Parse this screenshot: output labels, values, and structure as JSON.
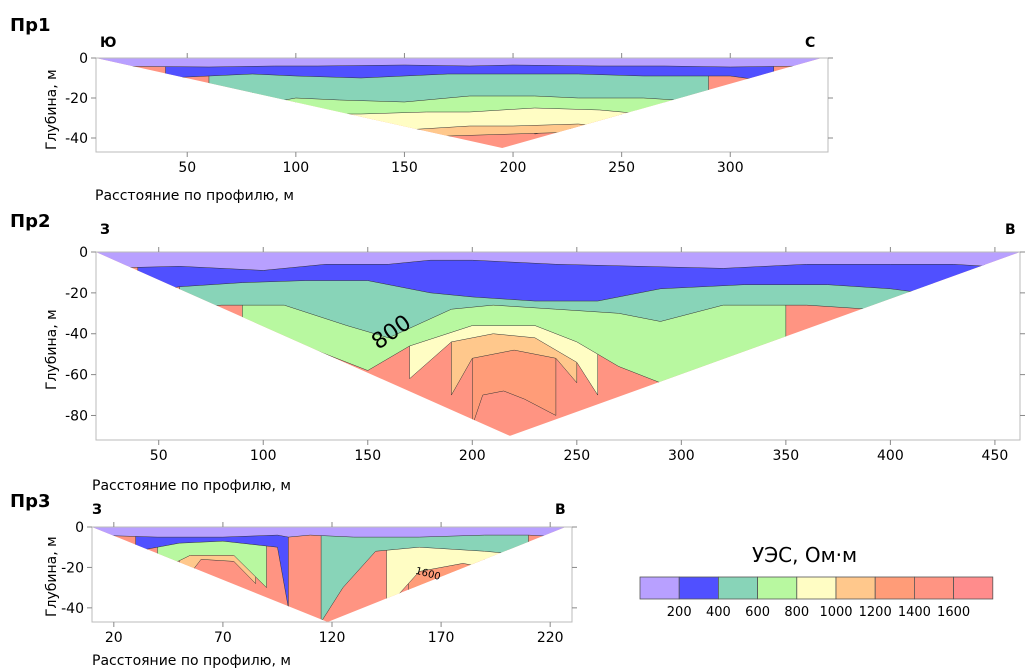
{
  "chart_data": [
    {
      "type": "heatmap",
      "panel_label": "Пр1",
      "dir_left": "Ю",
      "dir_right": "С",
      "xlabel": "Расстояние по профилю, м",
      "ylabel": "Глубина, м",
      "xlim": [
        8,
        345
      ],
      "ylim": [
        -47,
        0
      ],
      "xticks": [
        50,
        100,
        150,
        200,
        250,
        300
      ],
      "yticks": [
        0,
        -20,
        -40
      ],
      "section": {
        "x_start": 8,
        "x_end": 342,
        "x_apex": 195,
        "depth_max": 45
      },
      "boundaries": [
        {
          "x": [
            8,
            60,
            90,
            110,
            150,
            180,
            200,
            240,
            270,
            300,
            335,
            342
          ],
          "depth": [
            4,
            4.5,
            4,
            4,
            3.5,
            4,
            3.5,
            4,
            4,
            4.5,
            4,
            6
          ]
        },
        {
          "x": [
            40,
            80,
            100,
            130,
            170,
            200,
            230,
            260,
            300,
            320
          ],
          "depth": [
            10,
            8,
            9,
            10,
            8,
            8,
            8,
            9,
            9,
            12
          ]
        },
        {
          "x": [
            60,
            90,
            100,
            120,
            150,
            180,
            210,
            230,
            260,
            290
          ],
          "depth": [
            24,
            22,
            20,
            21,
            22,
            19,
            19,
            20,
            20,
            22
          ]
        },
        {
          "x": [
            80,
            100,
            130,
            160,
            180,
            210,
            240,
            260,
            280
          ],
          "depth": [
            30,
            28,
            28,
            27,
            27,
            25,
            26,
            28,
            30
          ]
        },
        {
          "x": [
            100,
            130,
            150,
            180,
            200,
            230,
            250,
            270
          ],
          "depth": [
            38,
            36,
            36,
            34,
            34,
            33,
            35,
            38
          ]
        },
        {
          "x": [
            130,
            170,
            200,
            230,
            250
          ],
          "depth": [
            45,
            39,
            38,
            37,
            41
          ]
        },
        {
          "x": [
            210,
            225,
            250
          ],
          "depth": [
            38,
            35,
            40
          ]
        }
      ],
      "contour_labels": []
    },
    {
      "type": "heatmap",
      "panel_label": "Пр2",
      "dir_left": "З",
      "dir_right": "В",
      "xlabel": "Расстояние по профилю, м",
      "ylabel": "Глубина, м",
      "xlim": [
        20,
        462
      ],
      "ylim": [
        -92,
        0
      ],
      "xticks": [
        50,
        100,
        150,
        200,
        250,
        300,
        350,
        400,
        450
      ],
      "yticks": [
        0,
        -20,
        -40,
        -60,
        -80
      ],
      "section": {
        "x_start": 20,
        "x_end": 462,
        "x_apex": 218,
        "depth_max": 90
      },
      "boundaries": [
        {
          "x": [
            20,
            60,
            100,
            130,
            160,
            180,
            200,
            240,
            280,
            320,
            360,
            400,
            430,
            462
          ],
          "depth": [
            8,
            7,
            9,
            6,
            6,
            4,
            4,
            6,
            7,
            8,
            6,
            6,
            6,
            8
          ]
        },
        {
          "x": [
            40,
            60,
            90,
            120,
            150,
            180,
            200,
            230,
            260,
            290,
            330,
            370,
            400,
            430,
            445
          ],
          "depth": [
            20,
            17,
            15,
            14,
            14,
            20,
            22,
            24,
            24,
            18,
            16,
            16,
            18,
            22,
            28
          ]
        },
        {
          "x": [
            60,
            80,
            110,
            140,
            160,
            190,
            210,
            240,
            270,
            290,
            320,
            360,
            390,
            420
          ],
          "depth": [
            28,
            26,
            26,
            36,
            42,
            28,
            26,
            28,
            30,
            34,
            26,
            26,
            28,
            34
          ]
        },
        {
          "x": [
            90,
            120,
            150,
            170,
            200,
            230,
            250,
            270,
            300,
            330,
            350
          ],
          "depth": [
            40,
            46,
            58,
            46,
            36,
            36,
            44,
            56,
            68,
            64,
            56
          ]
        },
        {
          "x": [
            170,
            190,
            210,
            230,
            250,
            260
          ],
          "depth": [
            62,
            44,
            40,
            42,
            54,
            70
          ]
        },
        {
          "x": [
            190,
            200,
            220,
            240,
            250
          ],
          "depth": [
            70,
            52,
            48,
            52,
            64
          ]
        },
        {
          "x": [
            200,
            205,
            215,
            225,
            240
          ],
          "depth": [
            85,
            70,
            68,
            72,
            80
          ]
        }
      ],
      "contour_labels": [
        {
          "text": "800",
          "x": 155,
          "depth": 48,
          "rotate": -35,
          "size": 22
        }
      ]
    },
    {
      "type": "heatmap",
      "panel_label": "Пр3",
      "dir_left": "З",
      "dir_right": "В",
      "xlabel": "Расстояние по профилю, м",
      "ylabel": "Глубина, м",
      "xlim": [
        10,
        230
      ],
      "ylim": [
        -47,
        0
      ],
      "xticks": [
        20,
        70,
        120,
        170,
        220
      ],
      "yticks": [
        0,
        -20,
        -40
      ],
      "section": {
        "x_start": 10,
        "x_end": 227,
        "x_apex": 118,
        "depth_max": 47
      },
      "boundaries": [
        {
          "x": [
            10,
            40,
            70,
            95,
            100,
            110,
            130,
            160,
            190,
            210,
            227
          ],
          "depth": [
            4,
            5,
            5,
            4,
            5,
            4,
            5,
            5,
            4,
            4,
            5
          ]
        },
        {
          "x": [
            30,
            50,
            70,
            95,
            100
          ],
          "depth": [
            12,
            8,
            7,
            10,
            40
          ]
        },
        {
          "x": [
            115,
            125,
            140,
            160,
            190,
            210
          ],
          "depth": [
            47,
            30,
            12,
            10,
            12,
            14
          ]
        },
        {
          "x": [
            40,
            55,
            75,
            90
          ],
          "depth": [
            22,
            14,
            14,
            30
          ]
        },
        {
          "x": [
            145,
            160,
            180,
            200
          ],
          "depth": [
            40,
            22,
            18,
            22
          ]
        },
        {
          "x": [
            50,
            60,
            75,
            85
          ],
          "depth": [
            30,
            16,
            17,
            28
          ]
        },
        {
          "x": [
            155,
            165,
            180,
            190
          ],
          "depth": [
            40,
            28,
            24,
            32
          ]
        }
      ],
      "contour_labels": [
        {
          "text": "1600",
          "x": 158,
          "depth": 23,
          "rotate": 15,
          "size": 10
        }
      ]
    }
  ],
  "legend": {
    "title": "УЭС, Ом·м",
    "colors": [
      "#b8a0ff",
      "#5050ff",
      "#88d4b8",
      "#b8f8a0",
      "#fffdc4",
      "#ffc88c",
      "#ff9c78",
      "#ff9482",
      "#ff8c8c"
    ],
    "labels": [
      "200",
      "400",
      "600",
      "800",
      "1000",
      "1200",
      "1400",
      "1600"
    ]
  }
}
